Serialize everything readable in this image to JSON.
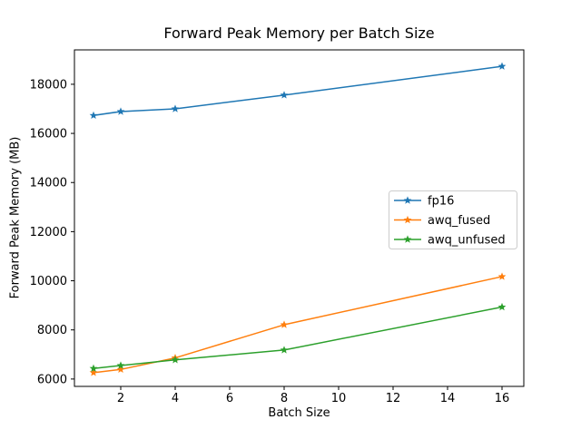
{
  "figure": {
    "title": "Forward Peak Memory per Batch Size",
    "xlabel": "Batch Size",
    "ylabel": "Forward Peak Memory (MB)"
  },
  "chart_data": {
    "type": "line",
    "title": "Forward Peak Memory per Batch Size",
    "xlabel": "Batch Size",
    "ylabel": "Forward Peak Memory (MB)",
    "x": [
      1,
      2,
      4,
      8,
      16
    ],
    "series": [
      {
        "name": "fp16",
        "color": "#1f77b4",
        "values": [
          16730,
          16890,
          17000,
          17560,
          18730
        ]
      },
      {
        "name": "awq_fused",
        "color": "#ff7f0e",
        "values": [
          6260,
          6390,
          6860,
          8210,
          10170
        ]
      },
      {
        "name": "awq_unfused",
        "color": "#2ca02c",
        "values": [
          6430,
          6550,
          6780,
          7180,
          8930
        ]
      }
    ],
    "marker": "star",
    "line_width": 1.5,
    "grid": false,
    "xlim": [
      0.3,
      16.8
    ],
    "ylim": [
      5700,
      19400
    ],
    "xticks": [
      2,
      4,
      6,
      8,
      10,
      12,
      14,
      16
    ],
    "yticks": [
      6000,
      8000,
      10000,
      12000,
      14000,
      16000,
      18000
    ],
    "legend": {
      "position": "center right",
      "entries": [
        "fp16",
        "awq_fused",
        "awq_unfused"
      ]
    }
  },
  "colors": {
    "background": "#ffffff",
    "axes": "#000000",
    "tick_labels": "#000000",
    "legend_border": "#cccccc",
    "legend_background": "#ffffff"
  }
}
